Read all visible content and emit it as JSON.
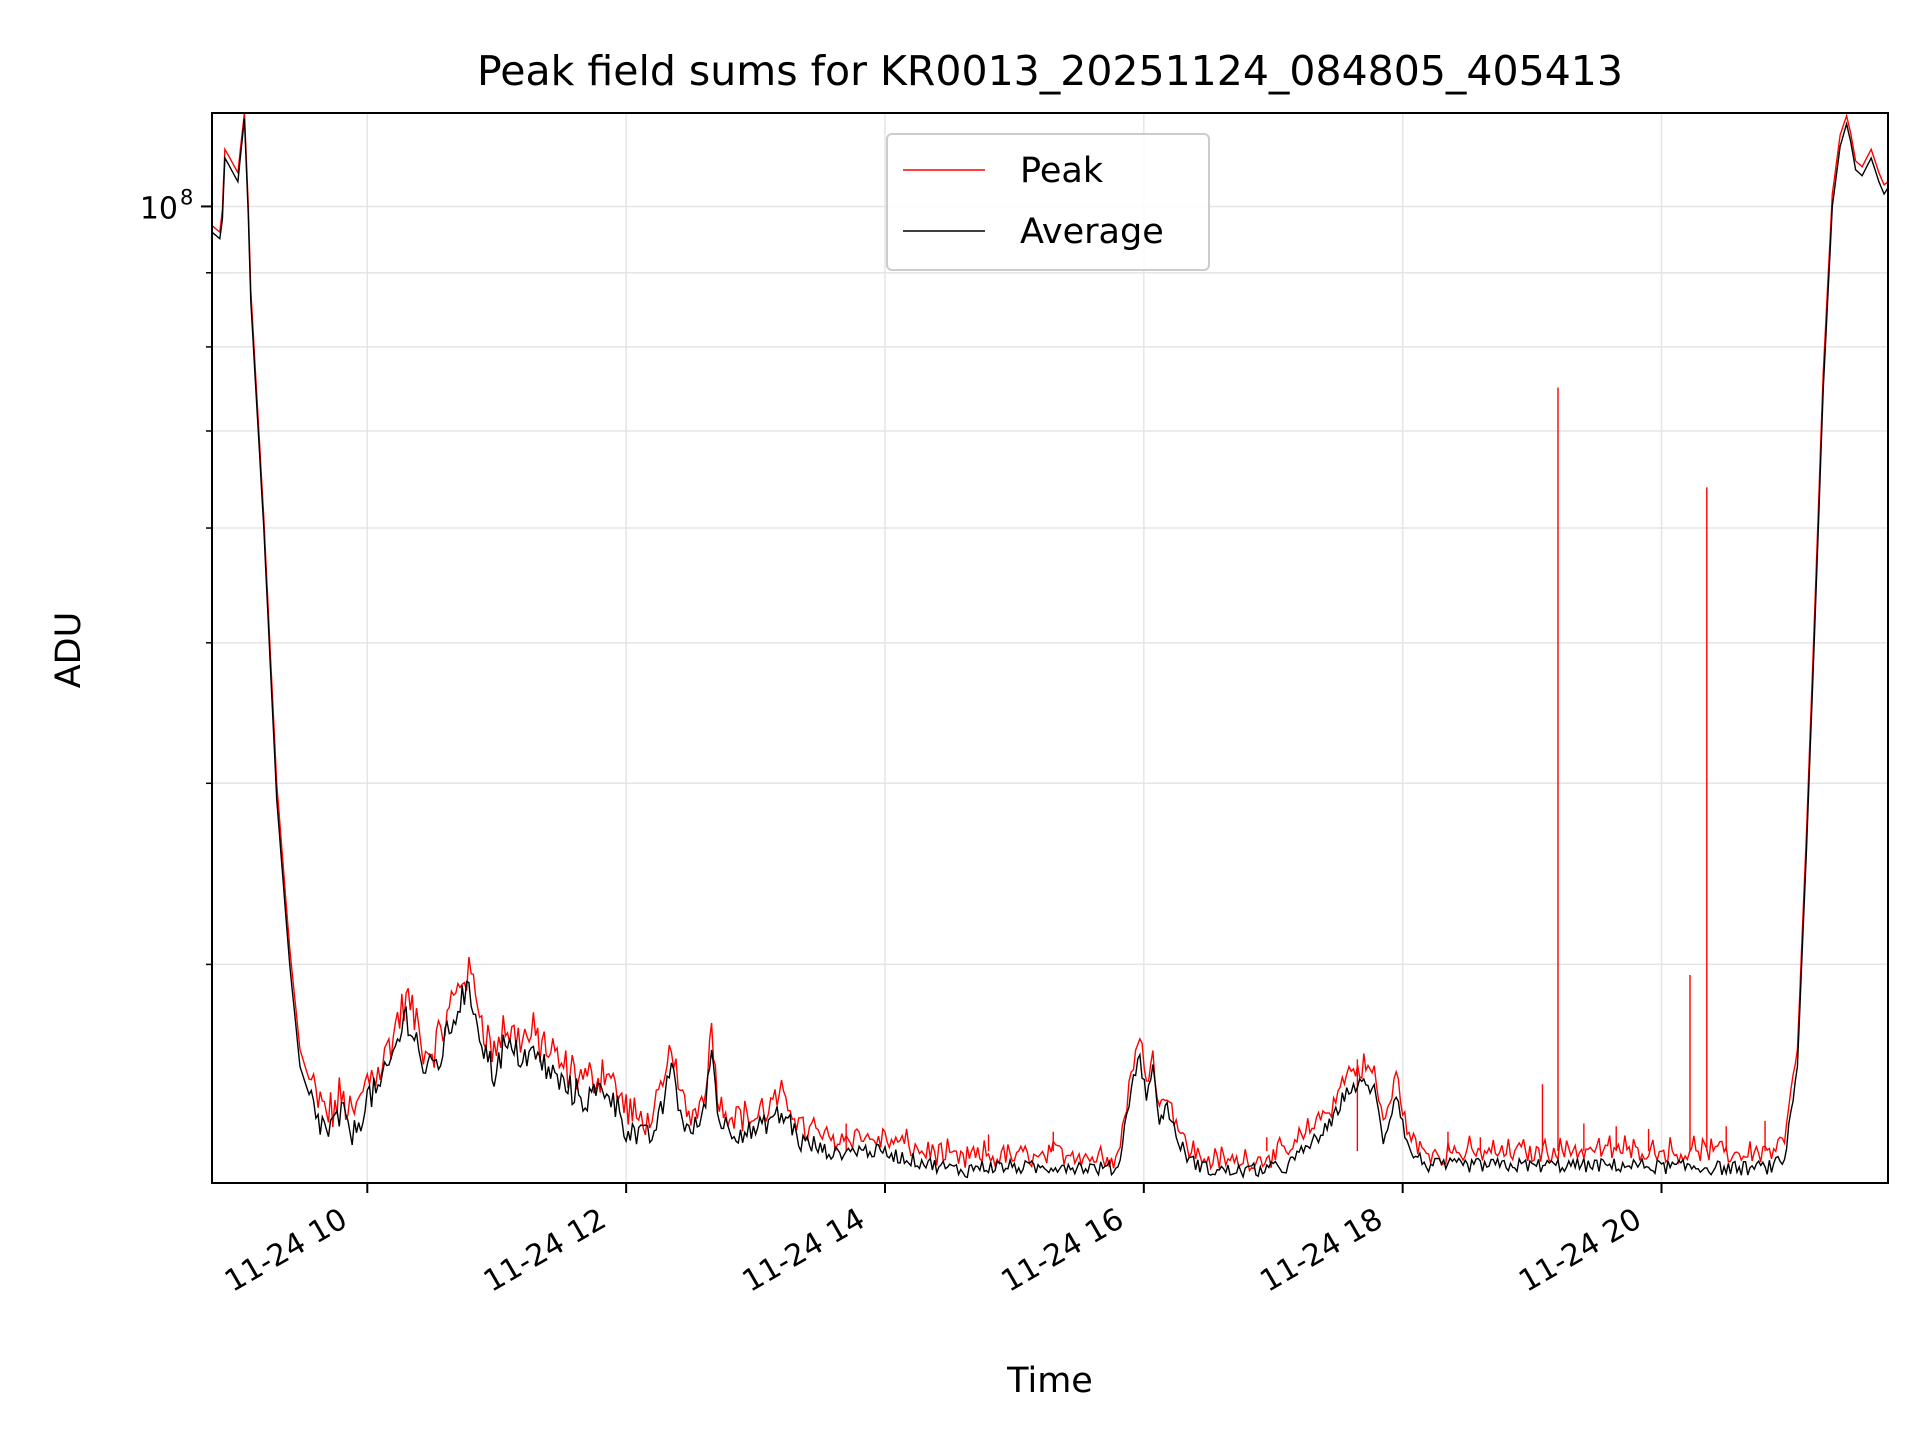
{
  "chart_data": {
    "type": "line",
    "title": "Peak field sums for KR0013_20251124_084805_405413",
    "xlabel": "Time",
    "ylabel": "ADU",
    "y_scale": "log",
    "x_unit": "hours (2025-11-24)",
    "xlim": [
      8.8,
      21.75
    ],
    "ylim": [
      21200000,
      116000000
    ],
    "xticks": [
      {
        "value": 10,
        "label": "11-24 10"
      },
      {
        "value": 12,
        "label": "11-24 12"
      },
      {
        "value": 14,
        "label": "11-24 14"
      },
      {
        "value": 16,
        "label": "11-24 16"
      },
      {
        "value": 18,
        "label": "11-24 18"
      },
      {
        "value": 20,
        "label": "11-24 20"
      }
    ],
    "ytick_major": {
      "value": 100000000,
      "base": "10",
      "exp": "8"
    },
    "y_minor_ticks": [
      30000000,
      40000000,
      50000000,
      60000000,
      70000000,
      80000000,
      90000000
    ],
    "grid": true,
    "legend": {
      "position": "upper center",
      "entries": [
        {
          "name": "Peak",
          "color": "#ff0000"
        },
        {
          "name": "Average",
          "color": "#000000"
        }
      ]
    },
    "series": [
      {
        "name": "Average",
        "color": "#000000",
        "x": [
          8.8,
          8.86,
          8.88,
          8.9,
          8.95,
          9.0,
          9.05,
          9.08,
          9.1,
          9.2,
          9.3,
          9.4,
          9.48,
          9.55,
          9.62,
          9.7,
          9.8,
          9.9,
          10.0,
          10.1,
          10.2,
          10.3,
          10.38,
          10.45,
          10.55,
          10.65,
          10.75,
          10.82,
          10.9,
          10.98,
          11.05,
          11.15,
          11.3,
          11.5,
          11.7,
          11.85,
          12.0,
          12.08,
          12.2,
          12.3,
          12.35,
          12.42,
          12.5,
          12.6,
          12.66,
          12.72,
          12.85,
          13.0,
          13.15,
          13.25,
          13.35,
          13.45,
          13.6,
          13.8,
          14.0,
          14.2,
          14.4,
          14.5,
          14.62,
          14.7,
          14.8,
          15.0,
          15.2,
          15.35,
          15.5,
          15.65,
          15.8,
          15.92,
          15.97,
          16.02,
          16.07,
          16.12,
          16.18,
          16.25,
          16.35,
          16.5,
          16.7,
          16.9,
          17.1,
          17.3,
          17.45,
          17.55,
          17.62,
          17.7,
          17.78,
          17.85,
          17.9,
          17.95,
          18.05,
          18.2,
          18.5,
          18.8,
          19.0,
          19.2,
          19.5,
          19.8,
          20.0,
          20.2,
          20.5,
          20.7,
          20.85,
          20.95,
          21.05,
          21.12,
          21.18,
          21.25,
          21.32,
          21.38,
          21.43,
          21.46,
          21.5,
          21.55,
          21.62,
          21.68,
          21.72,
          21.75
        ],
        "y": [
          96000000,
          95000000,
          98000000,
          108000000,
          106000000,
          104000000,
          115000000,
          99000000,
          86000000,
          60000000,
          39000000,
          30000000,
          25500000,
          24400000,
          23400000,
          23000000,
          23600000,
          22900000,
          24300000,
          24600000,
          26000000,
          27700000,
          26600000,
          25200000,
          25700000,
          27300000,
          28700000,
          28200000,
          26300000,
          25200000,
          26300000,
          26000000,
          25900000,
          24800000,
          24200000,
          24700000,
          23200000,
          22900000,
          22800000,
          24200000,
          25800000,
          23600000,
          22900000,
          23700000,
          26200000,
          23400000,
          23000000,
          23000000,
          23600000,
          23500000,
          22600000,
          22500000,
          22200000,
          22350000,
          22250000,
          22000000,
          21800000,
          21700000,
          21600000,
          21750000,
          21750000,
          21750000,
          21700000,
          21800000,
          21750000,
          21700000,
          21700000,
          25200000,
          25800000,
          24400000,
          25400000,
          23400000,
          24000000,
          22800000,
          22000000,
          21650000,
          21600000,
          21650000,
          21750000,
          22600000,
          23300000,
          24400000,
          24700000,
          24800000,
          24600000,
          22700000,
          23500000,
          24500000,
          22300000,
          21800000,
          21800000,
          21800000,
          21800000,
          21800000,
          21800000,
          21800000,
          21750000,
          21750000,
          21700000,
          21700000,
          21750000,
          22000000,
          25500000,
          36000000,
          50000000,
          75000000,
          100000000,
          110000000,
          114000000,
          111000000,
          106000000,
          105000000,
          108000000,
          104000000,
          102000000,
          103000000
        ]
      },
      {
        "name": "Peak",
        "color": "#ff0000",
        "x": [
          8.8,
          8.86,
          8.88,
          8.9,
          8.95,
          9.0,
          9.05,
          9.08,
          9.1,
          9.2,
          9.3,
          9.4,
          9.48,
          9.55,
          9.62,
          9.7,
          9.8,
          9.9,
          10.0,
          10.1,
          10.2,
          10.3,
          10.38,
          10.45,
          10.55,
          10.65,
          10.75,
          10.82,
          10.9,
          10.98,
          11.05,
          11.15,
          11.3,
          11.5,
          11.7,
          11.85,
          12.0,
          12.08,
          12.2,
          12.3,
          12.35,
          12.42,
          12.5,
          12.6,
          12.66,
          12.72,
          12.85,
          13.0,
          13.15,
          13.25,
          13.35,
          13.45,
          13.6,
          13.8,
          14.0,
          14.2,
          14.4,
          14.5,
          14.62,
          14.7,
          14.8,
          15.0,
          15.2,
          15.35,
          15.5,
          15.65,
          15.8,
          15.92,
          15.97,
          16.02,
          16.07,
          16.12,
          16.18,
          16.25,
          16.35,
          16.5,
          16.7,
          16.9,
          17.1,
          17.3,
          17.45,
          17.55,
          17.62,
          17.7,
          17.78,
          17.85,
          17.9,
          17.95,
          18.05,
          18.2,
          18.5,
          18.8,
          19.0,
          19.2,
          19.5,
          19.8,
          20.0,
          20.2,
          20.5,
          20.7,
          20.85,
          20.95,
          21.05,
          21.12,
          21.18,
          21.25,
          21.32,
          21.38,
          21.43,
          21.46,
          21.5,
          21.55,
          21.62,
          21.68,
          21.72,
          21.75
        ],
        "y": [
          97000000,
          96000000,
          99500000,
          109500000,
          107500000,
          105500000,
          116000000,
          100500000,
          87500000,
          61000000,
          40000000,
          30800000,
          26200000,
          25000000,
          24000000,
          23500000,
          24200000,
          23400000,
          24900000,
          25300000,
          26800000,
          28400000,
          27300000,
          25900000,
          26400000,
          28000000,
          29600000,
          29000000,
          27100000,
          25900000,
          27000000,
          26700000,
          26600000,
          25400000,
          24800000,
          25300000,
          23700000,
          23400000,
          23300000,
          24800000,
          26500000,
          24100000,
          23400000,
          24300000,
          26900000,
          23900000,
          23500000,
          23400000,
          24100000,
          24000000,
          23100000,
          22900000,
          22600000,
          22700000,
          22600000,
          22350000,
          22100000,
          22000000,
          21900000,
          22050000,
          22050000,
          22050000,
          22000000,
          22150000,
          22100000,
          22000000,
          22000000,
          25700000,
          26400000,
          24900000,
          26000000,
          23800000,
          24400000,
          23200000,
          22300000,
          21900000,
          21850000,
          21950000,
          22100000,
          23100000,
          23800000,
          25000000,
          25300000,
          25400000,
          25200000,
          23200000,
          24000000,
          25100000,
          22700000,
          22100000,
          22150000,
          22200000,
          22200000,
          22250000,
          22250000,
          22250000,
          22200000,
          22200000,
          22150000,
          22150000,
          22200000,
          22600000,
          26200000,
          37000000,
          51500000,
          77000000,
          102000000,
          112000000,
          115500000,
          112500000,
          107500000,
          106500000,
          109500000,
          105500000,
          103500000,
          104000000
        ]
      }
    ],
    "peak_spikes": [
      {
        "x": 19.2,
        "y": 75000000
      },
      {
        "x": 20.35,
        "y": 64000000
      },
      {
        "x": 20.22,
        "y": 29500000
      },
      {
        "x": 19.08,
        "y": 24800000
      },
      {
        "x": 17.65,
        "y": 25800000
      },
      {
        "x": 14.8,
        "y": 22900000
      },
      {
        "x": 13.7,
        "y": 23300000
      },
      {
        "x": 15.3,
        "y": 23000000
      },
      {
        "x": 16.95,
        "y": 22800000
      },
      {
        "x": 18.35,
        "y": 23000000
      },
      {
        "x": 18.6,
        "y": 22800000
      },
      {
        "x": 19.4,
        "y": 23300000
      },
      {
        "x": 19.65,
        "y": 23200000
      },
      {
        "x": 19.9,
        "y": 23100000
      },
      {
        "x": 20.5,
        "y": 23200000
      },
      {
        "x": 20.8,
        "y": 23400000
      }
    ]
  }
}
